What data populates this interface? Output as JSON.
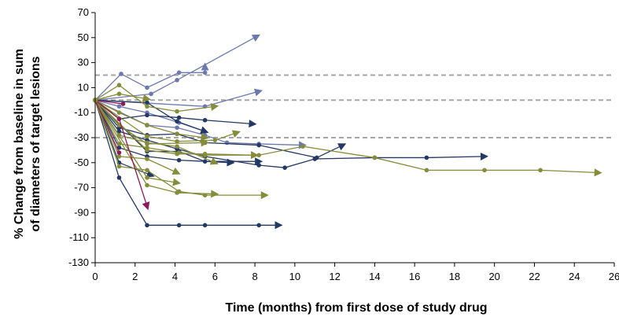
{
  "chart_data": {
    "type": "line",
    "title": "",
    "xlabel": "Time (months) from first dose of study drug",
    "ylabel": [
      "% Change from baseline in sum",
      "of diameters of target lesions"
    ],
    "xlim": [
      0,
      26
    ],
    "ylim": [
      -130,
      70
    ],
    "xticks": [
      0,
      2,
      4,
      6,
      8,
      10,
      12,
      14,
      16,
      18,
      20,
      22,
      24,
      26
    ],
    "yticks": [
      70,
      50,
      30,
      10,
      -10,
      -30,
      -50,
      -70,
      -90,
      -110,
      -130
    ],
    "reference_lines": [
      20,
      0,
      -30
    ],
    "reference_line_color": "#a6a6a6",
    "grid": false,
    "legend": "none",
    "colors": {
      "navy": "#233864",
      "blue": "#6b79ae",
      "olive": "#858c3a",
      "magenta": "#8b1a58"
    },
    "series": [
      {
        "color": "blue",
        "points": [
          [
            0,
            0
          ],
          [
            1.3,
            21
          ],
          [
            2.6,
            10
          ],
          [
            4.2,
            22
          ],
          [
            5.5,
            22
          ],
          [
            5.5,
            27
          ]
        ]
      },
      {
        "color": "blue",
        "points": [
          [
            0,
            0
          ],
          [
            2.8,
            5
          ],
          [
            4.1,
            16
          ],
          [
            8.1,
            51
          ]
        ]
      },
      {
        "color": "blue",
        "points": [
          [
            0,
            0
          ],
          [
            5.5,
            -5
          ],
          [
            8.2,
            7
          ]
        ]
      },
      {
        "color": "blue",
        "points": [
          [
            0,
            0
          ],
          [
            1.2,
            -5
          ],
          [
            2.6,
            -10
          ],
          [
            4.2,
            -18
          ],
          [
            5.5,
            -25
          ]
        ]
      },
      {
        "color": "blue",
        "points": [
          [
            0,
            0
          ],
          [
            2.6,
            -20
          ],
          [
            4.1,
            -22
          ],
          [
            5.5,
            -28
          ],
          [
            6.6,
            -34
          ],
          [
            8.2,
            -35
          ],
          [
            10.4,
            -36
          ]
        ]
      },
      {
        "color": "navy",
        "points": [
          [
            0,
            0
          ],
          [
            1.2,
            -15
          ],
          [
            2.6,
            -12
          ],
          [
            4.2,
            -14
          ],
          [
            5.5,
            -16
          ],
          [
            7.9,
            -19
          ]
        ]
      },
      {
        "color": "navy",
        "points": [
          [
            0,
            0
          ],
          [
            1.2,
            -25
          ],
          [
            2.6,
            -32
          ],
          [
            4.1,
            -39
          ],
          [
            5.5,
            -45
          ],
          [
            8.2,
            -52
          ],
          [
            9.5,
            -54
          ],
          [
            11.0,
            -47
          ],
          [
            14.0,
            -46
          ],
          [
            16.6,
            -46
          ],
          [
            19.5,
            -45
          ]
        ]
      },
      {
        "color": "navy",
        "points": [
          [
            0,
            0
          ],
          [
            1.2,
            -38
          ],
          [
            2.6,
            -45
          ],
          [
            4.2,
            -48
          ],
          [
            6.8,
            -50
          ]
        ]
      },
      {
        "color": "navy",
        "points": [
          [
            0,
            0
          ],
          [
            1.2,
            -22
          ],
          [
            2.6,
            -28
          ],
          [
            4.1,
            -27
          ],
          [
            5.5,
            -34
          ],
          [
            8.2,
            -36
          ],
          [
            11.1,
            -46
          ],
          [
            12.4,
            -36
          ]
        ]
      },
      {
        "color": "navy",
        "points": [
          [
            0,
            0
          ],
          [
            1.2,
            -50
          ],
          [
            2.8,
            -60
          ]
        ]
      },
      {
        "color": "navy",
        "points": [
          [
            0,
            0
          ],
          [
            1.2,
            -62
          ],
          [
            2.6,
            -100
          ],
          [
            4.2,
            -100
          ],
          [
            5.5,
            -100
          ],
          [
            8.2,
            -100
          ],
          [
            9.2,
            -100
          ]
        ]
      },
      {
        "color": "navy",
        "points": [
          [
            0,
            0
          ],
          [
            2.6,
            -2
          ],
          [
            4.1,
            -17
          ],
          [
            5.5,
            -25
          ]
        ]
      },
      {
        "color": "navy",
        "points": [
          [
            0,
            0
          ],
          [
            2.6,
            -41
          ],
          [
            4.2,
            -41
          ],
          [
            5.5,
            -49
          ],
          [
            8.2,
            -49
          ]
        ]
      },
      {
        "color": "olive",
        "points": [
          [
            0,
            0
          ],
          [
            1.2,
            12
          ],
          [
            2.6,
            -5
          ],
          [
            4.1,
            -9
          ],
          [
            6.0,
            -5
          ]
        ]
      },
      {
        "color": "olive",
        "points": [
          [
            0,
            0
          ],
          [
            1.2,
            5
          ],
          [
            2.6,
            1
          ]
        ]
      },
      {
        "color": "olive",
        "points": [
          [
            0,
            0
          ],
          [
            1.2,
            -35
          ],
          [
            2.6,
            -38
          ],
          [
            4.2,
            -42
          ],
          [
            5.5,
            -44
          ],
          [
            8.2,
            -44
          ],
          [
            10.4,
            -37
          ],
          [
            14.0,
            -46
          ],
          [
            16.6,
            -56
          ],
          [
            19.5,
            -56
          ],
          [
            22.3,
            -56
          ],
          [
            25.2,
            -58
          ]
        ]
      },
      {
        "color": "olive",
        "points": [
          [
            0,
            0
          ],
          [
            1.2,
            -53
          ],
          [
            2.6,
            -56
          ],
          [
            4.2,
            -73
          ],
          [
            5.5,
            -76
          ],
          [
            8.5,
            -76
          ]
        ]
      },
      {
        "color": "olive",
        "points": [
          [
            0,
            0
          ],
          [
            2.6,
            -68
          ],
          [
            4.1,
            -74
          ],
          [
            6.0,
            -75
          ]
        ]
      },
      {
        "color": "olive",
        "points": [
          [
            0,
            0
          ],
          [
            1.2,
            -45
          ],
          [
            2.6,
            -47
          ],
          [
            4.1,
            -58
          ]
        ]
      },
      {
        "color": "olive",
        "points": [
          [
            0,
            0
          ],
          [
            2.6,
            -29
          ],
          [
            4.1,
            -33
          ],
          [
            6.0,
            -32
          ],
          [
            7.1,
            -26
          ]
        ]
      },
      {
        "color": "olive",
        "points": [
          [
            0,
            0
          ],
          [
            2.6,
            -40
          ],
          [
            4.1,
            -43
          ],
          [
            5.5,
            -43
          ],
          [
            8.0,
            -44
          ]
        ]
      },
      {
        "color": "olive",
        "points": [
          [
            0,
            0
          ],
          [
            1.2,
            -20
          ],
          [
            2.6,
            -35
          ],
          [
            5.5,
            -34
          ]
        ]
      },
      {
        "color": "olive",
        "points": [
          [
            0,
            0
          ],
          [
            2.6,
            -62
          ],
          [
            4.1,
            -66
          ]
        ]
      },
      {
        "color": "olive",
        "points": [
          [
            0,
            0
          ],
          [
            1.2,
            -28
          ],
          [
            2.6,
            -34
          ],
          [
            4.1,
            -37
          ],
          [
            6.0,
            -50
          ]
        ]
      },
      {
        "color": "olive",
        "points": [
          [
            0,
            0
          ],
          [
            1.2,
            -10
          ],
          [
            2.6,
            -20
          ],
          [
            4.1,
            -27
          ],
          [
            5.5,
            -30
          ]
        ]
      },
      {
        "color": "magenta",
        "points": [
          [
            0,
            0
          ],
          [
            1.2,
            -15
          ],
          [
            2.6,
            -85
          ]
        ]
      },
      {
        "color": "magenta",
        "points": [
          [
            0,
            0
          ],
          [
            1.2,
            -42
          ]
        ]
      },
      {
        "color": "magenta",
        "points": [
          [
            0,
            0
          ],
          [
            1.4,
            -3
          ]
        ]
      }
    ]
  }
}
